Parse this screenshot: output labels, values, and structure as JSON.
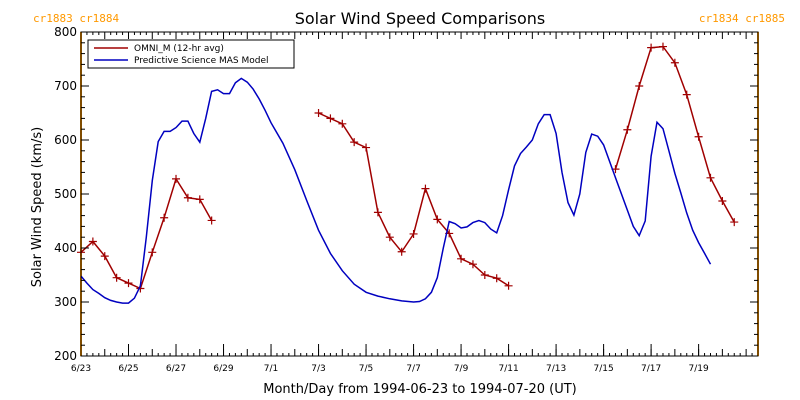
{
  "chart_data": {
    "type": "line",
    "title": "Solar Wind Speed Comparisons",
    "xlabel": "Month/Day from 1994-06-23 to 1994-07-20 (UT)",
    "ylabel": "Solar Wind Speed (km/s)",
    "xlim": [
      "1994-06-23",
      "1994-07-21.5"
    ],
    "ylim": [
      200,
      800
    ],
    "x_tick_labels": [
      "6/23",
      "6/25",
      "6/27",
      "6/29",
      "7/1",
      "7/3",
      "7/5",
      "7/7",
      "7/9",
      "7/11",
      "7/13",
      "7/15",
      "7/17",
      "7/19"
    ],
    "y_ticks": [
      200,
      300,
      400,
      500,
      600,
      700,
      800
    ],
    "grid": false,
    "legend_position": "top-left",
    "carrington_markers": [
      {
        "x": "1994-06-23",
        "labels": [
          "cr1883",
          "cr1884"
        ],
        "color": "#ff9900"
      },
      {
        "x": "1994-07-21.5",
        "labels": [
          "cr1834",
          "cr1885"
        ],
        "color": "#ff9900"
      }
    ],
    "series": [
      {
        "name": "OMNI_M (12-hr avg)",
        "color": "#a00000",
        "marker": "plus",
        "segments": [
          [
            [
              "1994-06-23.0",
              392
            ],
            [
              "1994-06-23.5",
              412
            ],
            [
              "1994-06-24.0",
              385
            ],
            [
              "1994-06-24.5",
              345
            ],
            [
              "1994-06-25.0",
              335
            ],
            [
              "1994-06-25.5",
              325
            ],
            [
              "1994-06-26.0",
              392
            ],
            [
              "1994-06-26.5",
              456
            ],
            [
              "1994-06-27.0",
              528
            ],
            [
              "1994-06-27.5",
              493
            ],
            [
              "1994-06-28.0",
              490
            ],
            [
              "1994-06-28.5",
              451
            ]
          ],
          [
            [
              "1994-07-03.0",
              650
            ],
            [
              "1994-07-03.5",
              640
            ],
            [
              "1994-07-04.0",
              630
            ],
            [
              "1994-07-04.5",
              596
            ],
            [
              "1994-07-05.0",
              586
            ],
            [
              "1994-07-05.5",
              466
            ],
            [
              "1994-07-06.0",
              420
            ],
            [
              "1994-07-06.5",
              393
            ],
            [
              "1994-07-07.0",
              426
            ],
            [
              "1994-07-07.5",
              510
            ],
            [
              "1994-07-08.0",
              453
            ],
            [
              "1994-07-08.5",
              427
            ],
            [
              "1994-07-09.0",
              380
            ],
            [
              "1994-07-09.5",
              370
            ],
            [
              "1994-07-10.0",
              350
            ],
            [
              "1994-07-10.5",
              344
            ],
            [
              "1994-07-11.0",
              330
            ]
          ],
          [
            [
              "1994-07-15.5",
              546
            ],
            [
              "1994-07-16.0",
              619
            ],
            [
              "1994-07-16.5",
              700
            ],
            [
              "1994-07-17.0",
              771
            ],
            [
              "1994-07-17.5",
              773
            ],
            [
              "1994-07-18.0",
              743
            ],
            [
              "1994-07-18.5",
              684
            ],
            [
              "1994-07-19.0",
              606
            ],
            [
              "1994-07-19.5",
              530
            ],
            [
              "1994-07-20.0",
              487
            ],
            [
              "1994-07-20.5",
              448
            ]
          ]
        ]
      },
      {
        "name": "Predictive Science MAS Model",
        "color": "#0000c0",
        "marker": "none",
        "segments": [
          [
            [
              "1994-06-23.00",
              348
            ],
            [
              "1994-06-23.25",
              335
            ],
            [
              "1994-06-23.50",
              323
            ],
            [
              "1994-06-23.75",
              316
            ],
            [
              "1994-06-24.00",
              308
            ],
            [
              "1994-06-24.25",
              303
            ],
            [
              "1994-06-24.50",
              300
            ],
            [
              "1994-06-24.75",
              298
            ],
            [
              "1994-06-25.00",
              298
            ],
            [
              "1994-06-25.25",
              307
            ],
            [
              "1994-06-25.50",
              330
            ],
            [
              "1994-06-25.75",
              420
            ],
            [
              "1994-06-26.00",
              525
            ],
            [
              "1994-06-26.25",
              597
            ],
            [
              "1994-06-26.50",
              616
            ],
            [
              "1994-06-26.75",
              616
            ],
            [
              "1994-06-27.00",
              623
            ],
            [
              "1994-06-27.25",
              635
            ],
            [
              "1994-06-27.50",
              635
            ],
            [
              "1994-06-27.75",
              612
            ],
            [
              "1994-06-28.00",
              596
            ],
            [
              "1994-06-28.25",
              640
            ],
            [
              "1994-06-28.50",
              690
            ],
            [
              "1994-06-28.75",
              693
            ],
            [
              "1994-06-29.00",
              686
            ],
            [
              "1994-06-29.25",
              686
            ],
            [
              "1994-06-29.50",
              706
            ],
            [
              "1994-06-29.75",
              714
            ],
            [
              "1994-06-30.00",
              707
            ],
            [
              "1994-06-30.25",
              694
            ],
            [
              "1994-06-30.50",
              676
            ],
            [
              "1994-06-30.75",
              655
            ],
            [
              "1994-07-01.00",
              632
            ],
            [
              "1994-07-01.50",
              594
            ],
            [
              "1994-07-02.00",
              545
            ],
            [
              "1994-07-02.50",
              488
            ],
            [
              "1994-07-03.00",
              433
            ],
            [
              "1994-07-03.50",
              390
            ],
            [
              "1994-07-04.00",
              358
            ],
            [
              "1994-07-04.50",
              333
            ],
            [
              "1994-07-05.00",
              318
            ],
            [
              "1994-07-05.50",
              311
            ],
            [
              "1994-07-06.00",
              306
            ],
            [
              "1994-07-06.50",
              302
            ],
            [
              "1994-07-07.00",
              300
            ],
            [
              "1994-07-07.25",
              301
            ],
            [
              "1994-07-07.50",
              306
            ],
            [
              "1994-07-07.75",
              318
            ],
            [
              "1994-07-08.00",
              345
            ],
            [
              "1994-07-08.25",
              400
            ],
            [
              "1994-07-08.50",
              449
            ],
            [
              "1994-07-08.75",
              445
            ],
            [
              "1994-07-09.00",
              437
            ],
            [
              "1994-07-09.25",
              439
            ],
            [
              "1994-07-09.50",
              447
            ],
            [
              "1994-07-09.75",
              451
            ],
            [
              "1994-07-10.00",
              447
            ],
            [
              "1994-07-10.25",
              435
            ],
            [
              "1994-07-10.50",
              428
            ],
            [
              "1994-07-10.75",
              460
            ],
            [
              "1994-07-11.00",
              508
            ],
            [
              "1994-07-11.25",
              552
            ],
            [
              "1994-07-11.50",
              575
            ],
            [
              "1994-07-11.75",
              587
            ],
            [
              "1994-07-12.00",
              600
            ],
            [
              "1994-07-12.25",
              630
            ],
            [
              "1994-07-12.50",
              647
            ],
            [
              "1994-07-12.75",
              647
            ],
            [
              "1994-07-13.00",
              612
            ],
            [
              "1994-07-13.25",
              540
            ],
            [
              "1994-07-13.50",
              484
            ],
            [
              "1994-07-13.75",
              461
            ],
            [
              "1994-07-14.00",
              500
            ],
            [
              "1994-07-14.25",
              577
            ],
            [
              "1994-07-14.50",
              611
            ],
            [
              "1994-07-14.75",
              607
            ],
            [
              "1994-07-15.00",
              591
            ],
            [
              "1994-07-15.50",
              530
            ],
            [
              "1994-07-16.00",
              470
            ],
            [
              "1994-07-16.25",
              440
            ],
            [
              "1994-07-16.50",
              423
            ],
            [
              "1994-07-16.75",
              450
            ],
            [
              "1994-07-17.00",
              570
            ],
            [
              "1994-07-17.25",
              633
            ],
            [
              "1994-07-17.50",
              621
            ],
            [
              "1994-07-17.75",
              580
            ],
            [
              "1994-07-18.00",
              538
            ],
            [
              "1994-07-18.25",
              502
            ],
            [
              "1994-07-18.50",
              465
            ],
            [
              "1994-07-18.75",
              433
            ],
            [
              "1994-07-19.00",
              410
            ],
            [
              "1994-07-19.25",
              390
            ],
            [
              "1994-07-19.50",
              370
            ]
          ]
        ]
      }
    ]
  }
}
